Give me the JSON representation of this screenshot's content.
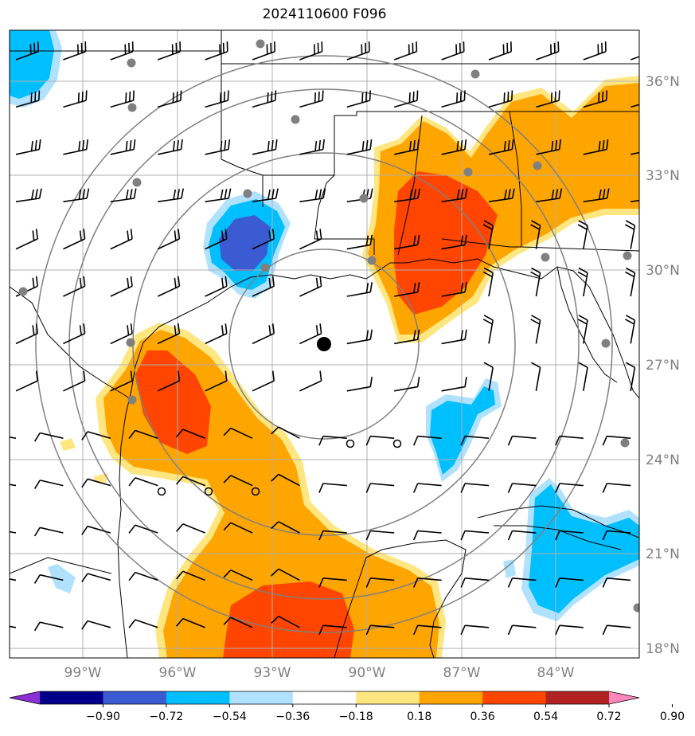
{
  "title": "2024110600 F096",
  "lon_labels": [
    "99°W",
    "96°W",
    "93°W",
    "90°W",
    "87°W",
    "84°W"
  ],
  "lat_labels": [
    "36°N",
    "33°N",
    "30°N",
    "27°N",
    "24°N",
    "21°N",
    "18°N"
  ],
  "colorbar": {
    "colors": [
      "#8c2fd2",
      "#00008b",
      "#3a5bd1",
      "#00bfff",
      "#b0e2ff",
      "#ffffff",
      "#ffe680",
      "#ffa500",
      "#ff4500",
      "#b22222",
      "#ff88bb"
    ],
    "labels": [
      "−0.90",
      "−0.72",
      "−0.54",
      "−0.36",
      "−0.18",
      "0.18",
      "0.36",
      "0.54",
      "0.72",
      "0.90"
    ]
  },
  "center_marker": "storm-center"
}
